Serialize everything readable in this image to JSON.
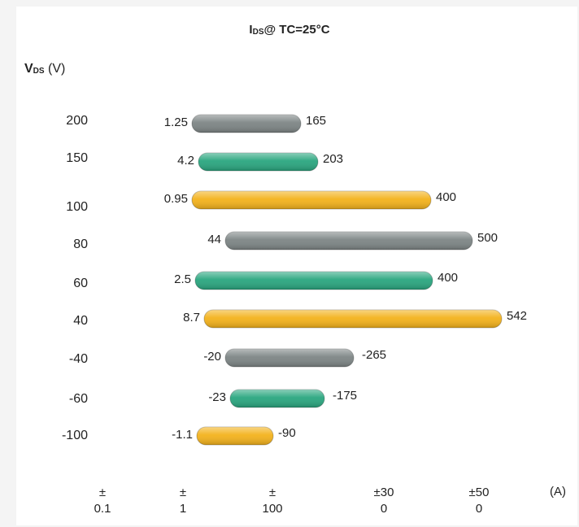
{
  "chart_data": {
    "type": "bar",
    "subtype": "floating-horizontal-range",
    "title_main": "I",
    "title_sub": "DS",
    "title_rest": "@ TC=25°C",
    "ylabel_main": "V",
    "ylabel_sub": "DS",
    "ylabel_unit": "(V)",
    "x_unit": "(A)",
    "x_ticks": [
      {
        "top": "±",
        "bottom": "0.1"
      },
      {
        "top": "±",
        "bottom": "1"
      },
      {
        "top": "±",
        "bottom": "100"
      },
      {
        "top": "±30",
        "bottom": "0"
      },
      {
        "top": "±50",
        "bottom": "0"
      }
    ],
    "categories": [
      "200",
      "150",
      "100",
      "80",
      "60",
      "40",
      "-40",
      "-60",
      "-100"
    ],
    "ranges": [
      {
        "min": "1.25",
        "max": "165",
        "min_val": 1.25,
        "max_val": 165,
        "color": "#7d8585"
      },
      {
        "min": "4.2",
        "max": "203",
        "min_val": 4.2,
        "max_val": 203,
        "color": "#2aa67f"
      },
      {
        "min": "0.95",
        "max": "400",
        "min_val": 0.95,
        "max_val": 400,
        "color": "#f3b21c"
      },
      {
        "min": "44",
        "max": "500",
        "min_val": 44,
        "max_val": 500,
        "color": "#7d8585"
      },
      {
        "min": "2.5",
        "max": "400",
        "min_val": 2.5,
        "max_val": 400,
        "color": "#2aa67f"
      },
      {
        "min": "8.7",
        "max": "542",
        "min_val": 8.7,
        "max_val": 542,
        "color": "#f3b21c"
      },
      {
        "min": "-20",
        "max": "-265",
        "min_val": 20,
        "max_val": 265,
        "color": "#7d8585"
      },
      {
        "min": "-23",
        "max": "-175",
        "min_val": 23,
        "max_val": 175,
        "color": "#2aa67f"
      },
      {
        "min": "-1.1",
        "max": "-90",
        "min_val": 1.1,
        "max_val": 90,
        "color": "#f3b21c"
      }
    ]
  }
}
